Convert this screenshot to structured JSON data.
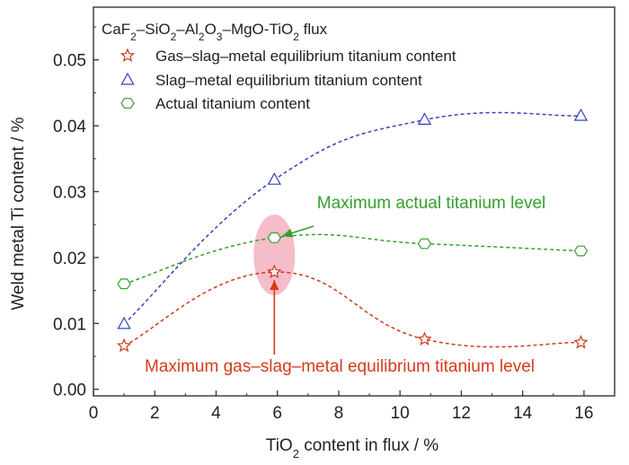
{
  "chart_data": {
    "type": "line",
    "flux_label": {
      "p1": "CaF",
      "s1": "2",
      "p2": "–SiO",
      "s2": "2",
      "p3": "–Al",
      "s3": "2",
      "p4": "O",
      "s4": "3",
      "p5": "–MgO-TiO",
      "s5": "2",
      "p6": " flux"
    },
    "xlabel": {
      "p1": "TiO",
      "sub": "2",
      "p2": " content in flux / %"
    },
    "ylabel": "Weld metal Ti content / %",
    "xlim": [
      0,
      17
    ],
    "ylim": [
      -0.001,
      0.058
    ],
    "x_ticks": [
      0,
      2,
      4,
      6,
      8,
      10,
      12,
      14,
      16
    ],
    "x_tick_labels": [
      "0",
      "2",
      "4",
      "6",
      "8",
      "10",
      "12",
      "14",
      "16"
    ],
    "y_ticks": [
      0,
      0.01,
      0.02,
      0.03,
      0.04,
      0.05
    ],
    "y_tick_labels": [
      "0.00",
      "0.01",
      "0.02",
      "0.03",
      "0.04",
      "0.05"
    ],
    "x": [
      1.0,
      5.9,
      10.8,
      15.9
    ],
    "series": [
      {
        "name": "Gas–slag–metal equilibrium titanium content",
        "marker": "star",
        "color": "#cc3a1e",
        "values": [
          0.0066,
          0.0178,
          0.0076,
          0.0071
        ]
      },
      {
        "name": "Slag–metal equilibrium titanium content",
        "marker": "triangle",
        "color": "#3344bb",
        "values": [
          0.0099,
          0.0318,
          0.0409,
          0.0415
        ]
      },
      {
        "name": "Actual titanium content",
        "marker": "hexagon",
        "color": "#35a02c",
        "values": [
          0.016,
          0.023,
          0.0221,
          0.021
        ]
      }
    ],
    "annotations": [
      {
        "text": "Maximum actual titanium level",
        "color": "#35a02c"
      },
      {
        "text": "Maximum gas–slag–metal equilibrium titanium level",
        "color": "#d83a1c"
      }
    ],
    "highlight_color": "#f2a6b7",
    "legend_position": "top-left",
    "grid": false
  }
}
